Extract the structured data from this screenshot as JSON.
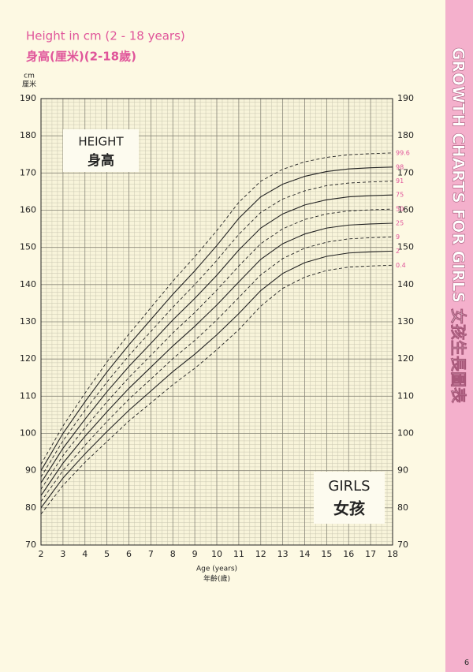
{
  "chart_data": {
    "type": "line",
    "title": "Height in cm (2 - 18 years)",
    "subtitle": "身高(厘米)(2-18歲)",
    "y_unit": "cm",
    "y_unit_zh": "厘米",
    "x_label": "Age (years)",
    "x_label_zh": "年齡(歲)",
    "box_label": "HEIGHT",
    "box_label_zh": "身高",
    "sex_label": "GIRLS",
    "sex_label_zh": "女孩",
    "side_title": "GROWTH CHARTS FOR GIRLS 女孩生長圖表",
    "page_number": "6",
    "x": [
      2,
      3,
      4,
      5,
      6,
      7,
      8,
      9,
      10,
      11,
      12,
      13,
      14,
      15,
      16,
      17,
      18
    ],
    "xlim": [
      2,
      18
    ],
    "xticks": [
      2,
      3,
      4,
      5,
      6,
      7,
      8,
      9,
      10,
      11,
      12,
      13,
      14,
      15,
      16,
      17,
      18
    ],
    "ylim": [
      70,
      190
    ],
    "yticks": [
      70,
      80,
      90,
      100,
      110,
      120,
      130,
      140,
      150,
      160,
      170,
      180,
      190
    ],
    "grid": true,
    "minor_grid": true,
    "label_color": "#e0559a",
    "series": [
      {
        "name": "99.6",
        "color": "#222",
        "dashed": true,
        "values": [
          91.7,
          102.0,
          110.8,
          119.2,
          126.7,
          133.8,
          140.9,
          147.5,
          154.5,
          162.1,
          167.8,
          171.0,
          173.0,
          174.2,
          174.9,
          175.2,
          175.4
        ]
      },
      {
        "name": "98",
        "color": "#222",
        "dashed": false,
        "values": [
          90,
          100,
          108.5,
          116.5,
          123.8,
          130.6,
          137.4,
          143.7,
          150.5,
          157.8,
          163.6,
          167,
          169.1,
          170.4,
          171.1,
          171.4,
          171.6
        ]
      },
      {
        "name": "91",
        "color": "#222",
        "dashed": true,
        "values": [
          88.3,
          98.0,
          106.2,
          113.8,
          120.9,
          127.4,
          133.9,
          140.0,
          146.5,
          153.5,
          159.4,
          163.0,
          165.2,
          166.6,
          167.3,
          167.6,
          167.8
        ]
      },
      {
        "name": "75",
        "color": "#222",
        "dashed": false,
        "values": [
          86.7,
          96.0,
          103.8,
          111.2,
          118.0,
          124.2,
          130.5,
          136.3,
          142.5,
          149.3,
          155.2,
          159.0,
          161.4,
          162.8,
          163.6,
          163.9,
          164.1
        ]
      },
      {
        "name": "50",
        "color": "#222",
        "dashed": true,
        "values": [
          85,
          94,
          101.5,
          108.5,
          115,
          121,
          127,
          132.5,
          138.5,
          145,
          151,
          155,
          157.5,
          159,
          159.8,
          160.1,
          160.3
        ]
      },
      {
        "name": "25",
        "color": "#222",
        "dashed": false,
        "values": [
          83.3,
          92.0,
          99.2,
          105.8,
          112.1,
          117.8,
          123.5,
          128.8,
          134.5,
          140.7,
          146.8,
          151.0,
          153.6,
          155.2,
          156.0,
          156.3,
          156.5
        ]
      },
      {
        "name": "9",
        "color": "#222",
        "dashed": true,
        "values": [
          81.7,
          90.0,
          96.8,
          103.2,
          109.2,
          114.6,
          120.1,
          125.0,
          130.5,
          136.5,
          142.6,
          147.0,
          149.8,
          151.4,
          152.3,
          152.6,
          152.8
        ]
      },
      {
        "name": "2",
        "color": "#222",
        "dashed": false,
        "values": [
          80,
          88.0,
          94.5,
          100.5,
          106.2,
          111.4,
          116.6,
          121.3,
          126.5,
          132.2,
          138.4,
          143.0,
          145.9,
          147.6,
          148.5,
          148.8,
          149.0
        ]
      },
      {
        "name": "0.4",
        "color": "#222",
        "dashed": true,
        "values": [
          78.3,
          86.0,
          92.2,
          97.8,
          103.3,
          108.2,
          113.1,
          117.5,
          122.5,
          127.9,
          134.2,
          139.0,
          142.0,
          143.8,
          144.7,
          145.0,
          145.2
        ]
      }
    ]
  }
}
